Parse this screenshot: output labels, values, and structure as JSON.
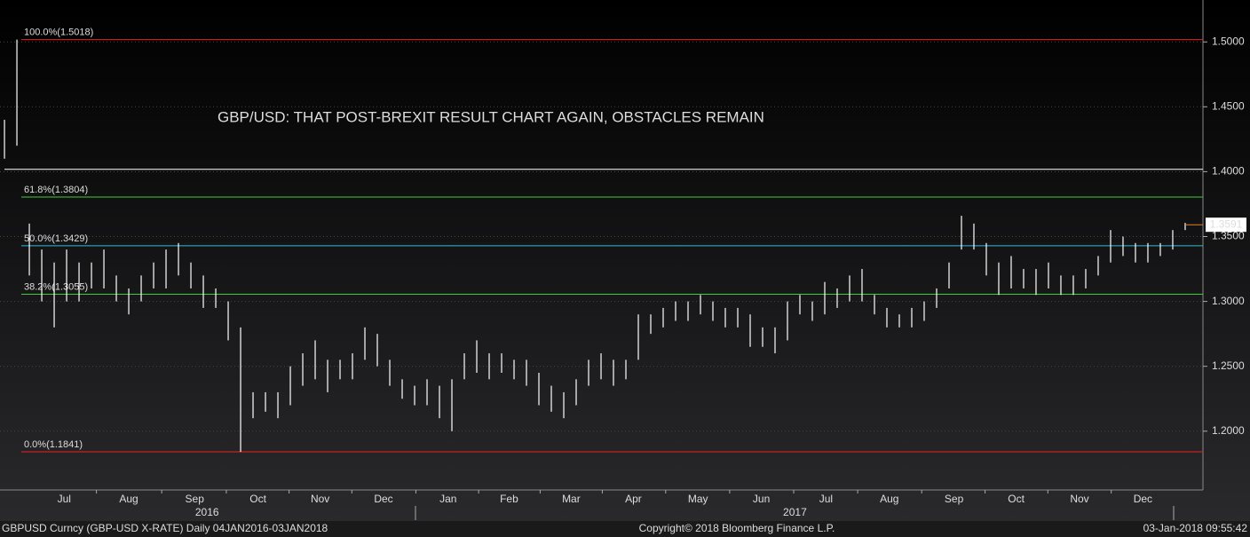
{
  "chart_data": {
    "type": "ohlc",
    "title": "GBP/USD: THAT POST-BREXIT RESULT CHART AGAIN, OBSTACLES REMAIN",
    "color": "#ffffff",
    "high": [
      1.44,
      1.5018,
      1.36,
      1.34,
      1.33,
      1.34,
      1.33,
      1.33,
      1.34,
      1.32,
      1.31,
      1.32,
      1.33,
      1.34,
      1.345,
      1.33,
      1.32,
      1.31,
      1.3,
      1.28,
      1.23,
      1.23,
      1.23,
      1.25,
      1.26,
      1.27,
      1.255,
      1.255,
      1.26,
      1.28,
      1.275,
      1.255,
      1.24,
      1.235,
      1.24,
      1.235,
      1.24,
      1.26,
      1.27,
      1.26,
      1.26,
      1.255,
      1.255,
      1.245,
      1.235,
      1.23,
      1.24,
      1.255,
      1.26,
      1.255,
      1.255,
      1.29,
      1.29,
      1.295,
      1.3,
      1.3,
      1.305,
      1.3,
      1.295,
      1.295,
      1.29,
      1.28,
      1.28,
      1.3,
      1.305,
      1.3,
      1.315,
      1.31,
      1.32,
      1.325,
      1.305,
      1.295,
      1.29,
      1.295,
      1.3,
      1.31,
      1.33,
      1.366,
      1.36,
      1.345,
      1.33,
      1.335,
      1.325,
      1.325,
      1.33,
      1.32,
      1.32,
      1.325,
      1.335,
      1.355,
      1.35,
      1.345,
      1.345,
      1.345,
      1.355,
      1.3605
    ],
    "low": [
      1.41,
      1.42,
      1.32,
      1.3,
      1.28,
      1.3,
      1.3,
      1.31,
      1.31,
      1.3,
      1.29,
      1.3,
      1.31,
      1.31,
      1.32,
      1.31,
      1.295,
      1.295,
      1.27,
      1.184,
      1.21,
      1.215,
      1.21,
      1.22,
      1.235,
      1.24,
      1.23,
      1.24,
      1.24,
      1.255,
      1.25,
      1.235,
      1.225,
      1.22,
      1.22,
      1.21,
      1.2,
      1.24,
      1.245,
      1.24,
      1.245,
      1.24,
      1.235,
      1.22,
      1.215,
      1.21,
      1.22,
      1.235,
      1.24,
      1.235,
      1.24,
      1.255,
      1.275,
      1.28,
      1.285,
      1.285,
      1.29,
      1.285,
      1.28,
      1.28,
      1.265,
      1.265,
      1.26,
      1.27,
      1.29,
      1.285,
      1.29,
      1.295,
      1.3,
      1.3,
      1.29,
      1.28,
      1.28,
      1.28,
      1.285,
      1.295,
      1.31,
      1.34,
      1.34,
      1.32,
      1.305,
      1.31,
      1.31,
      1.305,
      1.31,
      1.305,
      1.305,
      1.31,
      1.32,
      1.33,
      1.335,
      1.33,
      1.33,
      1.335,
      1.34,
      1.355
    ],
    "last_value": 1.3591,
    "levels": [
      {
        "value": 1.5018,
        "label": "100.0%(1.5018)",
        "color": "#e8221f"
      },
      {
        "value": 1.4018,
        "color": "#ffffff"
      },
      {
        "value": 1.3804,
        "label": "61.8%(1.3804)",
        "color": "#3fcc3f"
      },
      {
        "value": 1.3429,
        "label": "50.0%(1.3429)",
        "color": "#35b8d8"
      },
      {
        "value": 1.3055,
        "label": "38.2%(1.3055)",
        "color": "#3fcc3f"
      },
      {
        "value": 1.1841,
        "label": "0.0%(1.1841)",
        "color": "#e8221f"
      }
    ],
    "xlim": [
      -0.36,
      96.43
    ],
    "xticks": [
      {
        "value": 4.8,
        "label": "Jul"
      },
      {
        "value": 10.0,
        "label": "Aug"
      },
      {
        "value": 15.3,
        "label": "Sep"
      },
      {
        "value": 20.4,
        "label": "Oct"
      },
      {
        "value": 25.4,
        "label": "Nov"
      },
      {
        "value": 30.5,
        "label": "Dec"
      },
      {
        "value": 35.7,
        "label": "Jan"
      },
      {
        "value": 40.6,
        "label": "Feb"
      },
      {
        "value": 45.6,
        "label": "Mar"
      },
      {
        "value": 50.6,
        "label": "Apr"
      },
      {
        "value": 55.8,
        "label": "May"
      },
      {
        "value": 60.9,
        "label": "Jun"
      },
      {
        "value": 66.1,
        "label": "Jul"
      },
      {
        "value": 71.2,
        "label": "Aug"
      },
      {
        "value": 76.4,
        "label": "Sep"
      },
      {
        "value": 81.4,
        "label": "Oct"
      },
      {
        "value": 86.5,
        "label": "Nov"
      },
      {
        "value": 91.6,
        "label": "Dec"
      }
    ],
    "years": [
      {
        "value": 16.3,
        "label": "2016"
      },
      {
        "value": 63.6,
        "label": "2017"
      }
    ],
    "ylim": [
      1.1547,
      1.5323
    ],
    "yticks": [
      {
        "value": 1.2,
        "label": "1.2000"
      },
      {
        "value": 1.25,
        "label": "1.2500"
      },
      {
        "value": 1.3,
        "label": "1.3000"
      },
      {
        "value": 1.35,
        "label": "1.3500"
      },
      {
        "value": 1.4,
        "label": "1.4000"
      },
      {
        "value": 1.45,
        "label": "1.4500"
      },
      {
        "value": 1.5,
        "label": "1.5000"
      }
    ],
    "footer_left": "GBPUSD Curncy (GBP-USD X-RATE)  Daily 04JAN2016-03JAN2018",
    "footer_center": "Copyright© 2018 Bloomberg Finance L.P.",
    "footer_right": "03-Jan-2018 09:55:42"
  }
}
